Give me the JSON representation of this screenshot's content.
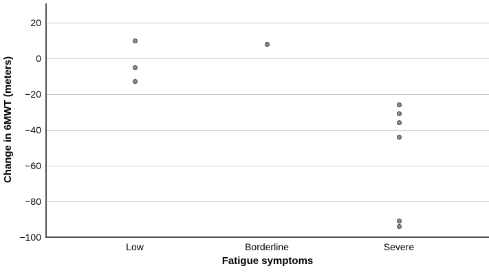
{
  "chart_data": {
    "type": "scatter",
    "xlabel": "Fatigue symptoms",
    "ylabel": "Change in 6MWT (meters)",
    "categories": [
      "Low",
      "Borderline",
      "Severe"
    ],
    "series": [
      {
        "name": "Low",
        "values": [
          10,
          -5,
          -13
        ]
      },
      {
        "name": "Borderline",
        "values": [
          8
        ]
      },
      {
        "name": "Severe",
        "values": [
          -26,
          -31,
          -36,
          -44,
          -91,
          -94
        ]
      }
    ],
    "ylim": [
      -100,
      30
    ],
    "yticks": [
      20,
      0,
      -20,
      -40,
      -60,
      -80,
      -100
    ],
    "grid": true,
    "legend": "none",
    "colors": {
      "point_fill": "#8d8d8d",
      "point_stroke": "#3b3b3b",
      "gridline": "#c9c9c9",
      "axis": "#4f4f4f",
      "text": "#000000",
      "background": "#ffffff"
    }
  }
}
